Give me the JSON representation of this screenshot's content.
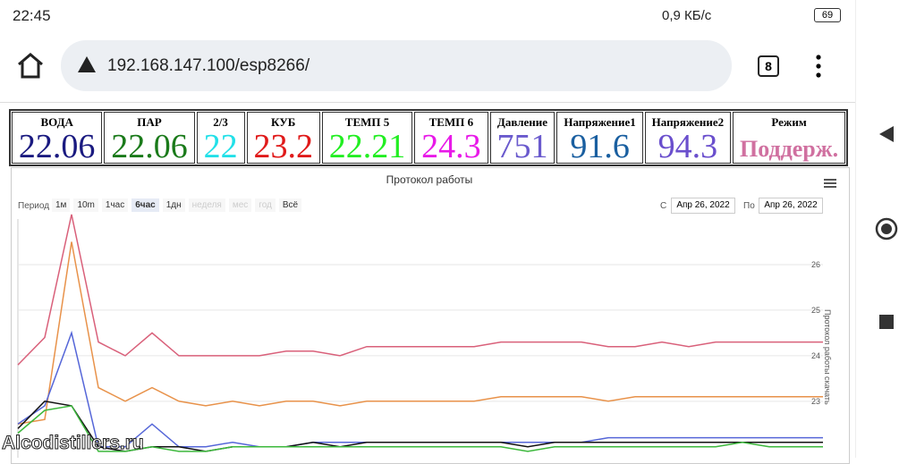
{
  "status_bar": {
    "time": "22:45",
    "speed": "0,9 КБ/с",
    "battery": "69"
  },
  "address_bar": {
    "url": "192.168.147.100/esp8266/",
    "tabs": "8"
  },
  "table": {
    "cells": [
      {
        "label": "ВОДА",
        "value": 22.06,
        "color": "#1a1a80"
      },
      {
        "label": "ПАР",
        "value": 22.06,
        "color": "#1a7a1a"
      },
      {
        "label": "2/3",
        "value": 22,
        "color": "#22e0e8"
      },
      {
        "label": "КУБ",
        "value": 23.2,
        "color": "#e01a1a"
      },
      {
        "label": "ТЕМП 5",
        "value": 22.21,
        "color": "#22ee22"
      },
      {
        "label": "ТЕМП 6",
        "value": 24.3,
        "color": "#e81ae8"
      },
      {
        "label": "Давление",
        "value": 751,
        "color": "#6a5acd"
      },
      {
        "label": "Напряжение1",
        "value": 91.6,
        "color": "#1a5fa0"
      },
      {
        "label": "Напряжение2",
        "value": 94.3,
        "color": "#6a4fcd"
      },
      {
        "label": "Режим",
        "value": "Поддерж.",
        "color": "#d070a0"
      }
    ]
  },
  "chart": {
    "title": "Протокол работы",
    "axis_title": "Протокол работы скачать",
    "range_label": "Период",
    "ranges": [
      "1м",
      "10m",
      "1час",
      "6час",
      "1дн",
      "неделя",
      "мес",
      "год",
      "Всё"
    ],
    "selected_range": "6час",
    "disabled_ranges": [
      "неделя",
      "мес",
      "год"
    ],
    "from_label": "С",
    "from": "Апр 26, 2022",
    "to_label": "По",
    "to": "Апр 26, 2022",
    "ylim": [
      21.8,
      27
    ],
    "yticks": [
      23,
      24,
      25,
      26
    ],
    "series": [
      {
        "color": "#d9607a",
        "values": [
          23.8,
          24.4,
          27.1,
          24.3,
          24.0,
          24.5,
          24.0,
          24.0,
          24.0,
          24.0,
          24.1,
          24.1,
          24.0,
          24.2,
          24.2,
          24.2,
          24.2,
          24.2,
          24.3,
          24.3,
          24.3,
          24.3,
          24.2,
          24.2,
          24.3,
          24.2,
          24.3,
          24.3,
          24.3,
          24.3,
          24.3
        ]
      },
      {
        "color": "#e8924a",
        "values": [
          22.5,
          22.6,
          26.5,
          23.3,
          23.0,
          23.3,
          23.0,
          22.9,
          23.0,
          22.9,
          23.0,
          23.0,
          22.9,
          23.0,
          23.0,
          23.0,
          23.0,
          23.0,
          23.1,
          23.1,
          23.1,
          23.1,
          23.0,
          23.1,
          23.1,
          23.1,
          23.1,
          23.1,
          23.1,
          23.1,
          23.1
        ]
      },
      {
        "color": "#5566d8",
        "values": [
          22.5,
          22.9,
          24.5,
          22.0,
          22.0,
          22.5,
          22.0,
          22.0,
          22.1,
          22.0,
          22.0,
          22.1,
          22.1,
          22.1,
          22.1,
          22.1,
          22.1,
          22.1,
          22.1,
          22.1,
          22.1,
          22.1,
          22.2,
          22.2,
          22.2,
          22.2,
          22.2,
          22.2,
          22.2,
          22.2,
          22.2
        ]
      },
      {
        "color": "#111111",
        "values": [
          22.4,
          23.0,
          22.9,
          22.0,
          21.9,
          22.0,
          22.0,
          21.9,
          22.0,
          22.0,
          22.0,
          22.1,
          22.0,
          22.1,
          22.1,
          22.1,
          22.1,
          22.1,
          22.1,
          22.0,
          22.1,
          22.1,
          22.1,
          22.1,
          22.1,
          22.1,
          22.1,
          22.1,
          22.1,
          22.1,
          22.1
        ]
      },
      {
        "color": "#3cb83c",
        "values": [
          22.3,
          22.8,
          22.9,
          21.9,
          21.9,
          22.0,
          21.9,
          21.9,
          22.0,
          22.0,
          22.0,
          22.0,
          22.0,
          22.0,
          22.0,
          22.0,
          22.0,
          22.0,
          22.0,
          21.9,
          22.0,
          22.0,
          22.0,
          22.0,
          22.0,
          22.0,
          22.0,
          22.1,
          22.0,
          22.0,
          22.0
        ]
      }
    ]
  },
  "watermark": "Alcodistillers.ru"
}
